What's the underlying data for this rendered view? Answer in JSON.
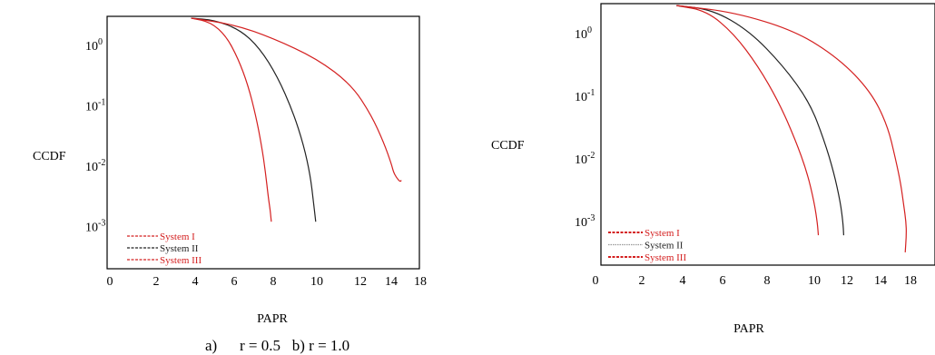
{
  "caption": {
    "label_a": "a)",
    "text": "r = 0.5   b) r = 1.0"
  },
  "chart_data": [
    {
      "type": "line",
      "panel": "a",
      "xlabel": "PAPR",
      "ylabel": "CCDF",
      "yscale": "log",
      "ylim": [
        0.0002,
        3.0
      ],
      "x_ticks": [
        0,
        2,
        4,
        6,
        8,
        10,
        12,
        14,
        18
      ],
      "y_ticks": [
        {
          "value": 1,
          "base": "10",
          "exp": "0"
        },
        {
          "value": 0.1,
          "base": "10",
          "exp": "-1"
        },
        {
          "value": 0.01,
          "base": "10",
          "exp": "-2"
        },
        {
          "value": 0.001,
          "base": "10",
          "exp": "-3"
        }
      ],
      "grid": false,
      "legend_position": "bottom-left",
      "series": [
        {
          "name": "System I",
          "color": "#d42020",
          "dash": "3 1.5",
          "x": [
            3.8,
            4.8,
            5.6,
            6.2,
            6.7,
            7.1,
            7.4,
            7.6,
            7.75,
            7.85,
            7.9
          ],
          "y": [
            2.8,
            2.4,
            1.4,
            0.6,
            0.22,
            0.07,
            0.022,
            0.008,
            0.003,
            0.0018,
            0.0012
          ]
        },
        {
          "name": "System II",
          "color": "#222222",
          "dash": "3 1.5",
          "x": [
            3.8,
            5.0,
            6.3,
            7.3,
            8.2,
            8.9,
            9.4,
            9.7,
            9.85,
            9.95
          ],
          "y": [
            2.8,
            2.6,
            1.8,
            0.9,
            0.3,
            0.08,
            0.022,
            0.007,
            0.0025,
            0.0012
          ]
        },
        {
          "name": "System III",
          "color": "#d42020",
          "dash": "3 1.5",
          "x": [
            3.8,
            6.0,
            8.0,
            10.0,
            11.6,
            12.7,
            13.5,
            14.0,
            14.3,
            14.7,
            15.2,
            15.4
          ],
          "y": [
            2.8,
            2.2,
            1.3,
            0.6,
            0.22,
            0.07,
            0.025,
            0.011,
            0.008,
            0.0065,
            0.0055,
            0.0058
          ]
        }
      ]
    },
    {
      "type": "line",
      "panel": "b",
      "xlabel": "PAPR",
      "ylabel": "CCDF",
      "yscale": "log",
      "ylim": [
        0.0002,
        3.0
      ],
      "x_ticks": [
        0,
        2,
        4,
        6,
        8,
        10,
        12,
        14,
        18
      ],
      "y_ticks": [
        {
          "value": 1,
          "base": "10",
          "exp": "0"
        },
        {
          "value": 0.1,
          "base": "10",
          "exp": "-1"
        },
        {
          "value": 0.01,
          "base": "10",
          "exp": "-2"
        },
        {
          "value": 0.001,
          "base": "10",
          "exp": "-3"
        }
      ],
      "grid": false,
      "legend_position": "bottom-left",
      "series": [
        {
          "name": "System I",
          "color": "#d42020",
          "dash": "none",
          "x": [
            3.7,
            5.2,
            6.5,
            7.6,
            8.5,
            9.2,
            9.7,
            10.0,
            10.2,
            10.25
          ],
          "y": [
            2.8,
            2.3,
            1.0,
            0.3,
            0.08,
            0.02,
            0.006,
            0.002,
            0.0009,
            0.0006
          ]
        },
        {
          "name": "System II",
          "color": "#222222",
          "dash": "none",
          "x": [
            3.7,
            5.5,
            7.2,
            8.7,
            9.8,
            10.6,
            11.2,
            11.6,
            11.75,
            11.8
          ],
          "y": [
            2.8,
            2.4,
            1.1,
            0.3,
            0.08,
            0.02,
            0.006,
            0.002,
            0.001,
            0.0006
          ]
        },
        {
          "name": "System III",
          "color": "#d42020",
          "dash": "none",
          "x": [
            3.7,
            6.5,
            9.2,
            11.5,
            13.4,
            14.9,
            16.0,
            16.7,
            17.1,
            17.4,
            17.45,
            17.3
          ],
          "y": [
            2.8,
            2.2,
            1.1,
            0.4,
            0.12,
            0.035,
            0.01,
            0.004,
            0.0018,
            0.001,
            0.0006,
            0.00032
          ]
        }
      ]
    }
  ]
}
